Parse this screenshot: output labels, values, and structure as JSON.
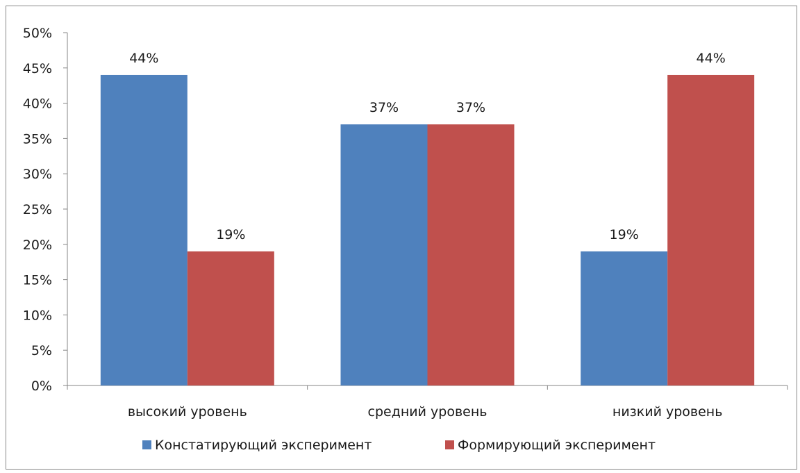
{
  "chart_data": {
    "type": "bar",
    "title": "",
    "xlabel": "",
    "ylabel": "",
    "categories": [
      "высокий уровень",
      "средний уровень",
      "низкий уровень"
    ],
    "series": [
      {
        "name": "Констатирующий эксперимент",
        "color": "#4f81bd",
        "values": [
          44,
          37,
          19
        ],
        "labels": [
          "44%",
          "37%",
          "19%"
        ]
      },
      {
        "name": "Формирующий эксперимент",
        "color": "#c0504d",
        "values": [
          19,
          37,
          44
        ],
        "labels": [
          "19%",
          "37%",
          "44%"
        ]
      }
    ],
    "ylim": [
      0,
      50
    ],
    "yticks": [
      0,
      5,
      10,
      15,
      20,
      25,
      30,
      35,
      40,
      45,
      50
    ],
    "ytick_labels": [
      "0%",
      "5%",
      "10%",
      "15%",
      "20%",
      "25%",
      "30%",
      "35%",
      "40%",
      "45%",
      "50%"
    ],
    "grid": false,
    "legend_position": "bottom"
  }
}
